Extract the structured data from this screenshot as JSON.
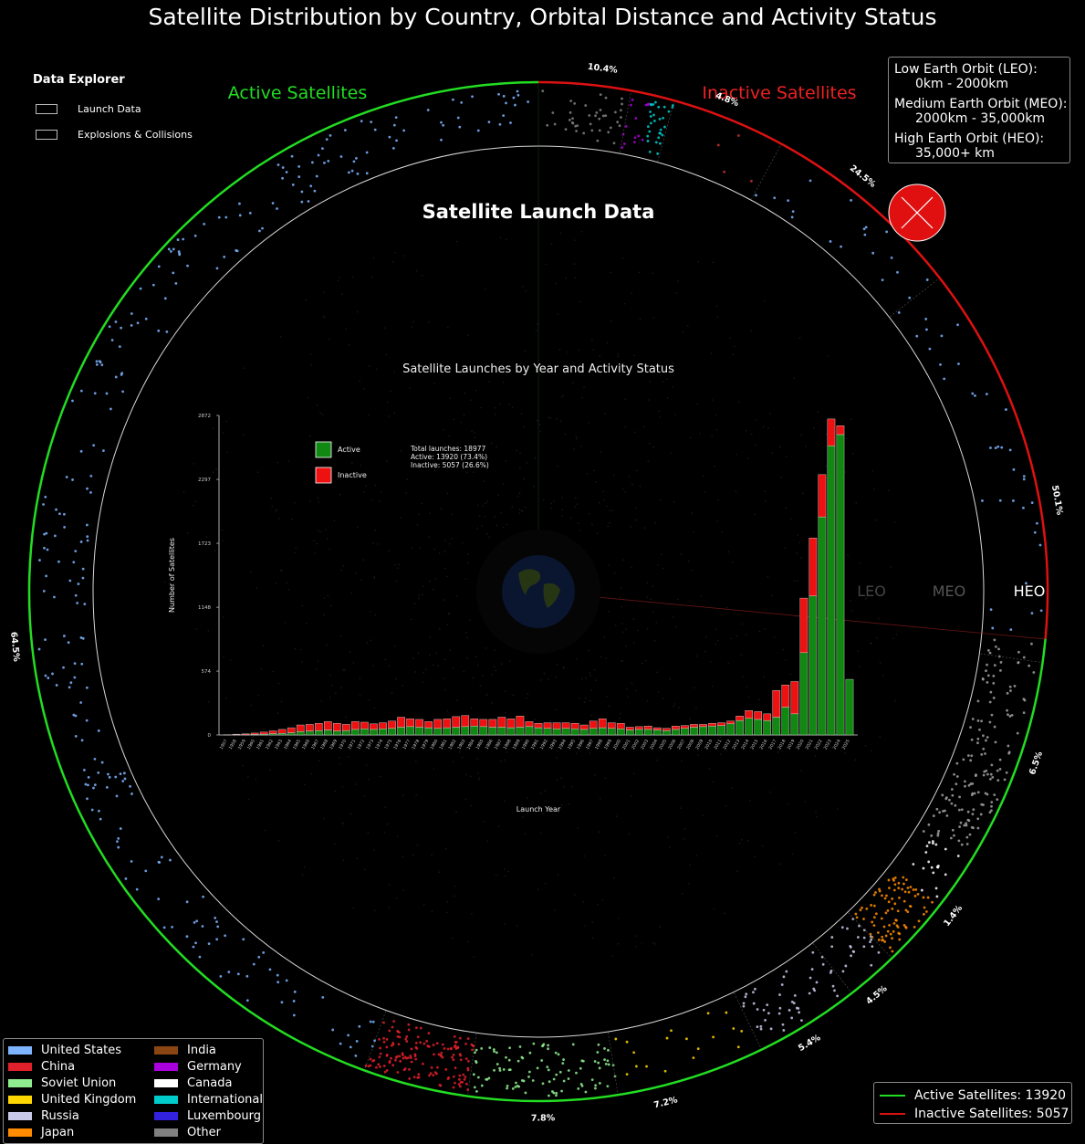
{
  "title": "Satellite Distribution by Country, Orbital Distance and Activity Status",
  "explorer": {
    "header": "Data Explorer",
    "items": [
      {
        "label": "Launch Data"
      },
      {
        "label": "Explosions & Collisions"
      }
    ]
  },
  "ring": {
    "active_label": "Active Satellites",
    "inactive_label": "Inactive Satellites",
    "center_title": "Satellite Launch Data",
    "orbit_labels": [
      "LEO",
      "MEO",
      "HEO"
    ],
    "active_color": "#22dd22",
    "inactive_color": "#dd1111",
    "percent_labels": [
      {
        "text": "10.4%"
      },
      {
        "text": "4.8%"
      },
      {
        "text": "24.5%"
      },
      {
        "text": "50.1%"
      },
      {
        "text": "6.5%"
      },
      {
        "text": "1.4%"
      },
      {
        "text": "4.5%"
      },
      {
        "text": "5.4%"
      },
      {
        "text": "7.2%"
      },
      {
        "text": "7.8%"
      },
      {
        "text": "64.5%"
      }
    ]
  },
  "orbit_info": {
    "items": [
      {
        "name": "Low Earth Orbit (LEO):",
        "range": "0km - 2000km"
      },
      {
        "name": "Medium Earth Orbit (MEO):",
        "range": "2000km - 35,000km"
      },
      {
        "name": "High Earth Orbit (HEO):",
        "range": "35,000+ km"
      }
    ]
  },
  "status_legend": [
    {
      "label": "Active Satellites: 13920",
      "color": "#22dd22"
    },
    {
      "label": "Inactive Satellites: 5057",
      "color": "#dd1111"
    }
  ],
  "countries": [
    {
      "name": "United States",
      "color": "#7eb3ff"
    },
    {
      "name": "China",
      "color": "#e0202a"
    },
    {
      "name": "Soviet Union",
      "color": "#90ee90"
    },
    {
      "name": "United Kingdom",
      "color": "#ffd700"
    },
    {
      "name": "Russia",
      "color": "#c8c8e8"
    },
    {
      "name": "Japan",
      "color": "#ff8c00"
    },
    {
      "name": "India",
      "color": "#8b4513"
    },
    {
      "name": "Germany",
      "color": "#aa00dd"
    },
    {
      "name": "Canada",
      "color": "#ffffff"
    },
    {
      "name": "International",
      "color": "#00cccc"
    },
    {
      "name": "Luxembourg",
      "color": "#3322dd"
    },
    {
      "name": "Other",
      "color": "#808080"
    }
  ],
  "chart_data": {
    "type": "bar",
    "title": "Satellite Launches by Year and Activity Status",
    "xlabel": "Launch Year",
    "ylabel": "Number of Satellites",
    "stacked": true,
    "yticks": [
      "0",
      "574",
      "1148",
      "1723",
      "2297",
      "2872"
    ],
    "ylim": [
      0,
      2872
    ],
    "legend": [
      {
        "name": "Active",
        "color": "#118811"
      },
      {
        "name": "Inactive",
        "color": "#ee1111"
      }
    ],
    "legend_position": "top-left",
    "annotation": [
      "Total launches: 18977",
      "Active: 13920 (73.4%)",
      "Inactive: 5057 (26.6%)"
    ],
    "categories": [
      "1957",
      "1958",
      "1959",
      "1960",
      "1961",
      "1962",
      "1963",
      "1964",
      "1965",
      "1966",
      "1967",
      "1968",
      "1969",
      "1970",
      "1971",
      "1972",
      "1973",
      "1974",
      "1975",
      "1976",
      "1977",
      "1978",
      "1979",
      "1980",
      "1981",
      "1982",
      "1983",
      "1984",
      "1985",
      "1986",
      "1987",
      "1988",
      "1989",
      "1990",
      "1991",
      "1992",
      "1993",
      "1994",
      "1995",
      "1996",
      "1997",
      "1998",
      "1999",
      "2000",
      "2001",
      "2002",
      "2003",
      "2004",
      "2005",
      "2006",
      "2007",
      "2008",
      "2009",
      "2010",
      "2011",
      "2012",
      "2013",
      "2014",
      "2015",
      "2016",
      "2017",
      "2018",
      "2019",
      "2020",
      "2021",
      "2022",
      "2023",
      "2024",
      "2025"
    ],
    "series": [
      {
        "name": "Active",
        "values": [
          0,
          2,
          3,
          5,
          8,
          12,
          15,
          20,
          30,
          35,
          40,
          45,
          35,
          40,
          50,
          55,
          50,
          55,
          60,
          70,
          75,
          70,
          65,
          60,
          65,
          70,
          75,
          80,
          75,
          70,
          70,
          65,
          70,
          75,
          65,
          60,
          55,
          60,
          55,
          50,
          60,
          65,
          60,
          55,
          45,
          50,
          50,
          45,
          40,
          50,
          60,
          70,
          75,
          80,
          85,
          100,
          130,
          150,
          140,
          130,
          160,
          250,
          190,
          740,
          1250,
          1960,
          2600,
          2700,
          500
        ]
      },
      {
        "name": "Inactive",
        "values": [
          2,
          5,
          7,
          12,
          18,
          25,
          35,
          45,
          60,
          60,
          65,
          75,
          70,
          55,
          70,
          60,
          50,
          55,
          65,
          90,
          70,
          70,
          55,
          80,
          80,
          95,
          100,
          65,
          65,
          70,
          90,
          80,
          100,
          45,
          40,
          50,
          55,
          50,
          50,
          40,
          65,
          80,
          50,
          50,
          25,
          25,
          30,
          20,
          20,
          30,
          25,
          25,
          20,
          25,
          25,
          25,
          40,
          70,
          70,
          60,
          240,
          200,
          290,
          490,
          520,
          380,
          240,
          80,
          0
        ]
      }
    ]
  }
}
